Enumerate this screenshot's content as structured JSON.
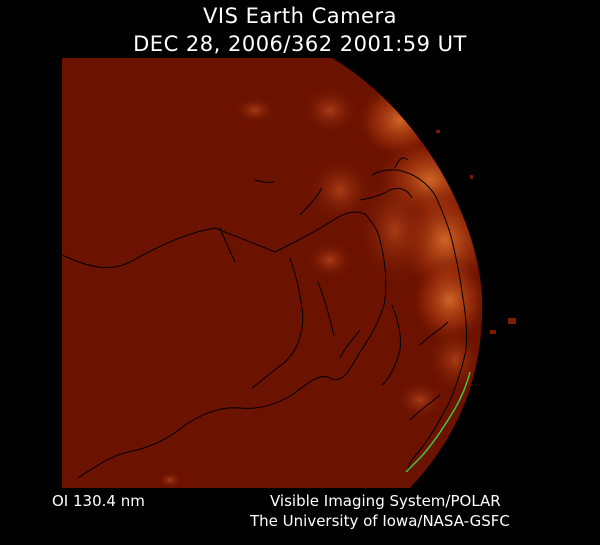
{
  "header": {
    "title": "VIS Earth Camera",
    "timestamp": "DEC 28, 2006/362 2001:59 UT"
  },
  "footer": {
    "filter": "OI  130.4 nm",
    "credit_line1": "Visible Imaging System/POLAR",
    "credit_line2": "The University of Iowa/NASA-GSFC"
  },
  "image": {
    "subject": "earth-disk-auroral-emission",
    "colors": {
      "background": "#000000",
      "disk": "#6e1200",
      "aurora_glow": "#c8541a",
      "coastline": "#000000",
      "coastline_highlight": "#3fcf3f"
    }
  }
}
